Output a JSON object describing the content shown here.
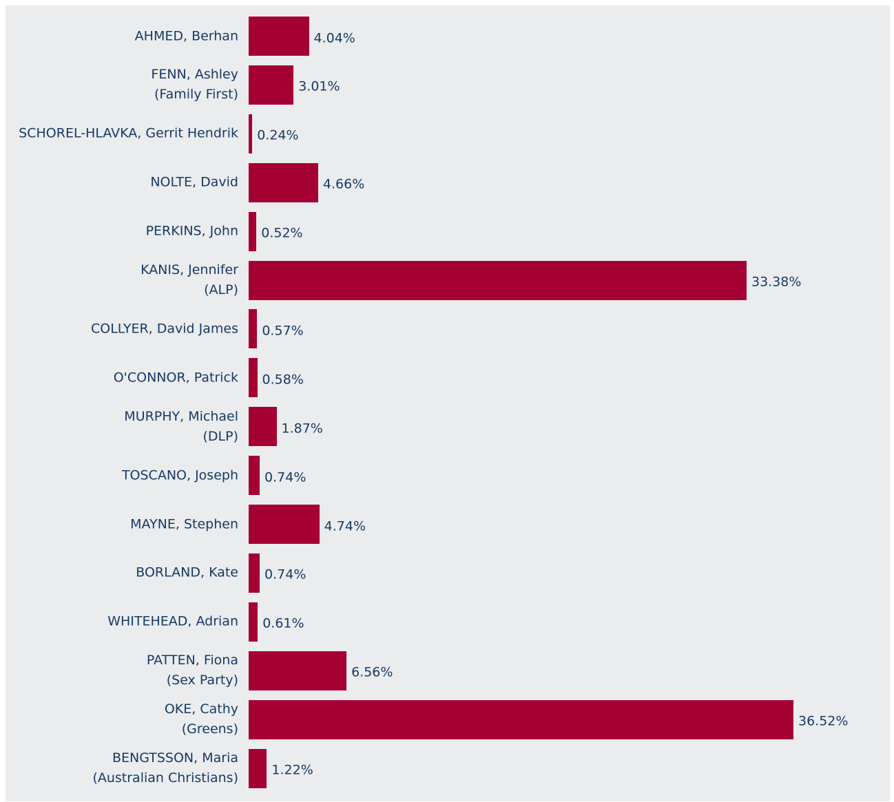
{
  "chart_data": {
    "type": "bar",
    "orientation": "horizontal",
    "categories": [
      "AHMED, Berhan",
      "FENN, Ashley\n(Family First)",
      "SCHOREL-HLAVKA, Gerrit Hendrik",
      "NOLTE, David",
      "PERKINS, John",
      "KANIS, Jennifer\n(ALP)",
      "COLLYER, David James",
      "O'CONNOR, Patrick",
      "MURPHY, Michael\n(DLP)",
      "TOSCANO, Joseph",
      "MAYNE, Stephen",
      "BORLAND, Kate",
      "WHITEHEAD, Adrian",
      "PATTEN, Fiona\n(Sex Party)",
      "OKE, Cathy\n(Greens)",
      "BENGTSSON, Maria\n(Australian Christians)"
    ],
    "values": [
      4.04,
      3.01,
      0.24,
      4.66,
      0.52,
      33.38,
      0.57,
      0.58,
      1.87,
      0.74,
      4.74,
      0.74,
      0.61,
      6.56,
      36.52,
      1.22
    ],
    "value_labels": [
      "4.04%",
      "3.01%",
      "0.24%",
      "4.66%",
      "0.52%",
      "33.38%",
      "0.57%",
      "0.58%",
      "1.87%",
      "0.74%",
      "4.74%",
      "0.74%",
      "0.61%",
      "6.56%",
      "36.52%",
      "1.22%"
    ],
    "color": "#a50034"
  }
}
